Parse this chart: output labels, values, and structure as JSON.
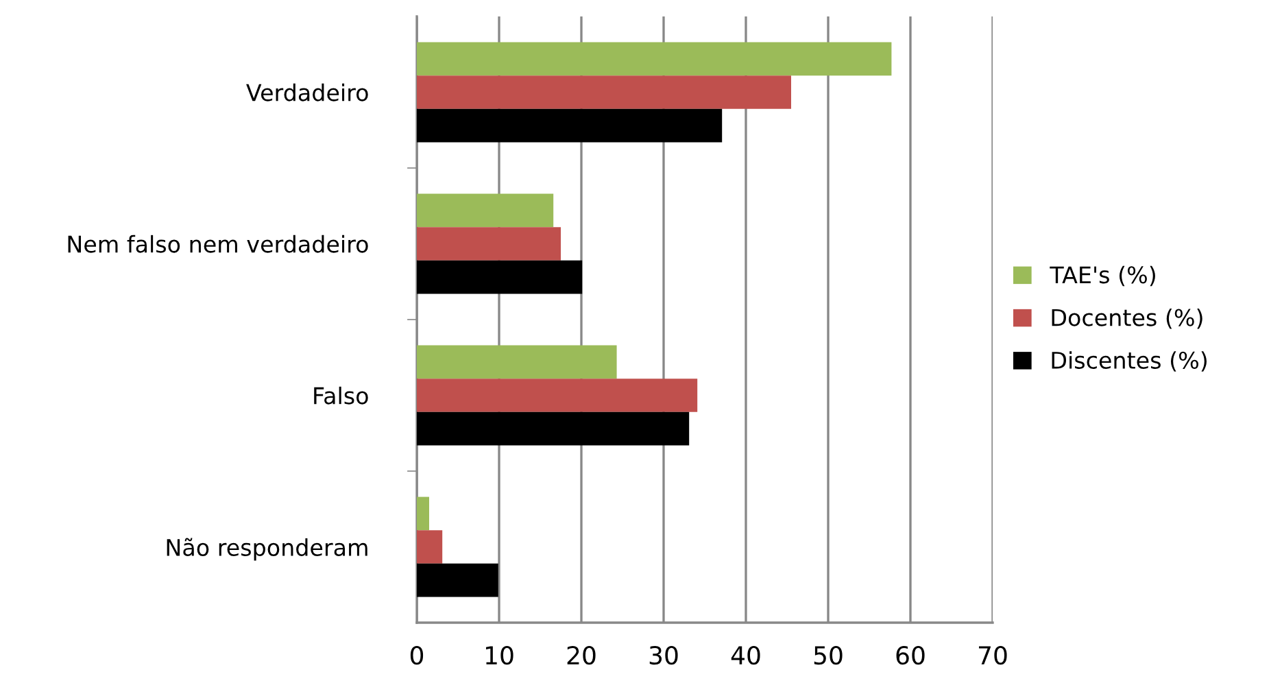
{
  "chart_data": {
    "type": "bar",
    "orientation": "horizontal",
    "categories": [
      "Verdadeiro",
      "Nem falso nem verdadeiro",
      "Falso",
      "Não responderam"
    ],
    "series": [
      {
        "name": "TAE's (%)",
        "color": "#9bbb59",
        "values": [
          57.7,
          16.6,
          24.3,
          1.5
        ]
      },
      {
        "name": "Docentes (%)",
        "color": "#c0504d",
        "values": [
          45.5,
          17.5,
          34.1,
          3.1
        ]
      },
      {
        "name": "Discentes (%)",
        "color": "#000000",
        "values": [
          37.1,
          20.1,
          33.1,
          9.9
        ]
      }
    ],
    "xlim": [
      0,
      70
    ],
    "xticks": [
      0,
      10,
      20,
      30,
      40,
      50,
      60,
      70
    ],
    "grid": "x",
    "legend": "right"
  }
}
